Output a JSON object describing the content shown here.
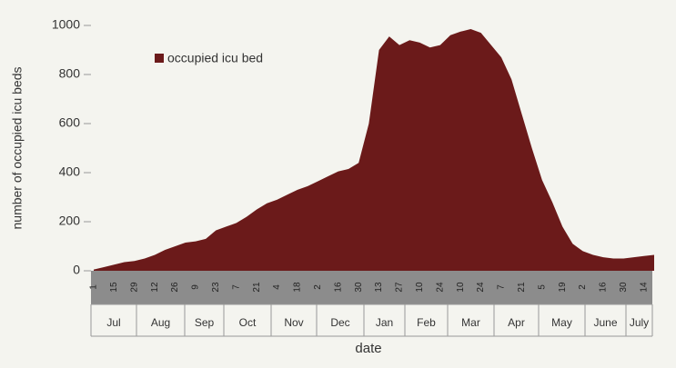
{
  "chart_data": {
    "type": "area",
    "x_label": "date",
    "y_label": "number of occupied icu beds",
    "categories": [
      "1",
      null,
      "15",
      null,
      "29",
      null,
      "12",
      null,
      "26",
      null,
      "9",
      null,
      "23",
      null,
      "7",
      null,
      "21",
      null,
      "4",
      null,
      "18",
      null,
      "2",
      null,
      "16",
      null,
      "30",
      null,
      "13",
      null,
      "27",
      null,
      "10",
      null,
      "24",
      null,
      "10",
      null,
      "24",
      null,
      "7",
      null,
      "21",
      null,
      "5",
      null,
      "19",
      null,
      "2",
      null,
      "16",
      null,
      "30",
      null,
      "14",
      null
    ],
    "month_labels": [
      "Jul",
      "Aug",
      "Sep",
      "Oct",
      "Nov",
      "Dec",
      "Jan",
      "Feb",
      "Mar",
      "Apr",
      "May",
      "June",
      "July"
    ],
    "series": [
      {
        "name": "occupied icu bed",
        "color": "#6b1a1a",
        "values": [
          5,
          15,
          25,
          35,
          40,
          50,
          65,
          85,
          100,
          115,
          120,
          130,
          165,
          180,
          195,
          220,
          250,
          275,
          290,
          310,
          330,
          345,
          365,
          385,
          405,
          415,
          440,
          600,
          900,
          955,
          920,
          940,
          930,
          910,
          920,
          960,
          975,
          985,
          970,
          920,
          870,
          780,
          640,
          500,
          370,
          280,
          180,
          110,
          80,
          65,
          55,
          50,
          50,
          55,
          60,
          65
        ]
      }
    ],
    "ylim": [
      0,
      1000
    ],
    "yticks": [
      0,
      200,
      400,
      600,
      800,
      1000
    ],
    "legend": "top-left"
  }
}
